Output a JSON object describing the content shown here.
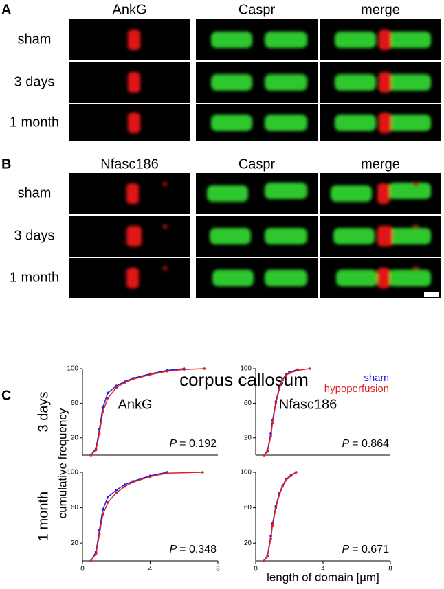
{
  "figure": {
    "panel_a": {
      "letter": "A",
      "columns": [
        "AnkG",
        "Caspr",
        "merge"
      ],
      "rows": [
        "sham",
        "3 days",
        "1 month"
      ]
    },
    "panel_b": {
      "letter": "B",
      "columns": [
        "Nfasc186",
        "Caspr",
        "merge"
      ],
      "rows": [
        "sham",
        "3 days",
        "1 month"
      ]
    },
    "panel_c": {
      "letter": "C",
      "title": "corpus callosum",
      "rows": [
        "3 days",
        "1 month"
      ],
      "y_label": "cumulative frequency",
      "x_label": "length of domain [µm]"
    }
  },
  "chart_data": [
    {
      "type": "scatter",
      "title": "AnkG",
      "xlim": [
        0,
        8
      ],
      "ylim": [
        0,
        100
      ],
      "yticks": [
        20,
        60,
        100
      ],
      "p_symbol": "P",
      "p_value": "= 0.192",
      "series": [
        {
          "color": "#2020e0",
          "x": [
            0.5,
            0.8,
            1.0,
            1.2,
            1.5,
            2,
            2.5,
            3,
            4,
            5,
            6
          ],
          "values": [
            0,
            8,
            30,
            55,
            72,
            80,
            85,
            89,
            94,
            98,
            100
          ]
        },
        {
          "color": "#e02020",
          "x": [
            0.5,
            0.8,
            1.0,
            1.2,
            1.5,
            2,
            2.5,
            3,
            4,
            5,
            6,
            7.2
          ],
          "values": [
            0,
            6,
            25,
            50,
            66,
            78,
            84,
            88,
            93,
            97,
            99,
            100
          ]
        }
      ]
    },
    {
      "type": "scatter",
      "title": "Nfasc186",
      "xlim": [
        0,
        8
      ],
      "ylim": [
        0,
        100
      ],
      "yticks": [
        20,
        60,
        100
      ],
      "p_symbol": "P",
      "p_value": "= 0.864",
      "series": [
        {
          "name": "sham",
          "color": "#2020e0",
          "x": [
            0.5,
            0.7,
            0.9,
            1.0,
            1.2,
            1.4,
            1.6,
            1.8,
            2.0,
            2.5
          ],
          "values": [
            0,
            5,
            25,
            40,
            62,
            78,
            88,
            93,
            96,
            99
          ]
        },
        {
          "name": "hypoperfusion",
          "color": "#e02020",
          "x": [
            0.5,
            0.7,
            0.9,
            1.0,
            1.2,
            1.4,
            1.6,
            1.8,
            2.0,
            2.5,
            3.2
          ],
          "values": [
            0,
            4,
            22,
            37,
            60,
            76,
            87,
            92,
            95,
            98,
            100
          ]
        }
      ]
    },
    {
      "type": "scatter",
      "xlim": [
        0,
        8
      ],
      "ylim": [
        0,
        100
      ],
      "xticks": [
        0,
        4,
        8
      ],
      "yticks": [
        20,
        60,
        100
      ],
      "p_symbol": "P",
      "p_value": "= 0.348",
      "series": [
        {
          "color": "#2020e0",
          "x": [
            0.5,
            0.8,
            1.0,
            1.2,
            1.5,
            2,
            2.5,
            3,
            4,
            5
          ],
          "values": [
            0,
            10,
            35,
            58,
            72,
            80,
            86,
            90,
            96,
            100
          ]
        },
        {
          "color": "#e02020",
          "x": [
            0.5,
            0.8,
            1.0,
            1.2,
            1.5,
            2,
            2.5,
            3,
            4,
            5,
            7.1
          ],
          "values": [
            0,
            8,
            30,
            52,
            66,
            77,
            84,
            89,
            95,
            99,
            100
          ]
        }
      ]
    },
    {
      "type": "scatter",
      "xlim": [
        0,
        8
      ],
      "ylim": [
        0,
        100
      ],
      "xticks": [
        0,
        4,
        8
      ],
      "yticks": [
        20,
        60,
        100
      ],
      "p_symbol": "P",
      "p_value": "= 0.671",
      "series": [
        {
          "color": "#2020e0",
          "x": [
            0.5,
            0.7,
            0.9,
            1.0,
            1.2,
            1.4,
            1.6,
            1.8,
            2.1,
            2.4
          ],
          "values": [
            0,
            6,
            28,
            42,
            62,
            76,
            85,
            92,
            97,
            100
          ]
        },
        {
          "color": "#e02020",
          "x": [
            0.5,
            0.7,
            0.9,
            1.0,
            1.2,
            1.4,
            1.6,
            1.8,
            2.1,
            2.4
          ],
          "values": [
            0,
            5,
            25,
            40,
            60,
            74,
            84,
            91,
            96,
            100
          ]
        }
      ]
    }
  ]
}
